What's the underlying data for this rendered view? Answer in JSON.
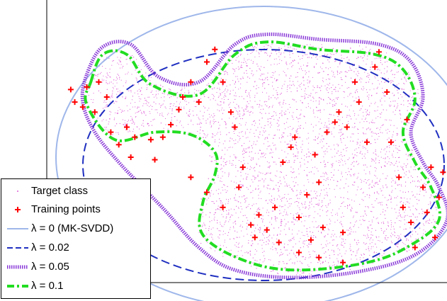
{
  "chart_data": {
    "type": "scatter",
    "title": "",
    "xlabel": "",
    "ylabel": "",
    "grid": false,
    "legend_placement": "bottom-left",
    "series": [
      {
        "name": "Target class",
        "kind": "points",
        "color": "#e060d8",
        "marker": "dot"
      },
      {
        "name": "Training points",
        "kind": "points",
        "color": "#ff0000",
        "marker": "plus",
        "points": [
          [
            0.06,
            0.77
          ],
          [
            0.07,
            0.72
          ],
          [
            0.09,
            0.7
          ],
          [
            0.1,
            0.78
          ],
          [
            0.12,
            0.68
          ],
          [
            0.13,
            0.8
          ],
          [
            0.15,
            0.74
          ],
          [
            0.16,
            0.6
          ],
          [
            0.18,
            0.55
          ],
          [
            0.2,
            0.62
          ],
          [
            0.21,
            0.5
          ],
          [
            0.22,
            0.58
          ],
          [
            0.26,
            0.57
          ],
          [
            0.27,
            0.49
          ],
          [
            0.29,
            0.58
          ],
          [
            0.31,
            0.63
          ],
          [
            0.33,
            0.69
          ],
          [
            0.34,
            0.74
          ],
          [
            0.36,
            0.8
          ],
          [
            0.38,
            0.72
          ],
          [
            0.4,
            0.88
          ],
          [
            0.42,
            0.93
          ],
          [
            0.44,
            0.8
          ],
          [
            0.46,
            0.68
          ],
          [
            0.47,
            0.62
          ],
          [
            0.48,
            0.38
          ],
          [
            0.49,
            0.46
          ],
          [
            0.51,
            0.23
          ],
          [
            0.53,
            0.27
          ],
          [
            0.55,
            0.21
          ],
          [
            0.57,
            0.3
          ],
          [
            0.59,
            0.48
          ],
          [
            0.61,
            0.54
          ],
          [
            0.62,
            0.58
          ],
          [
            0.63,
            0.26
          ],
          [
            0.65,
            0.35
          ],
          [
            0.66,
            0.17
          ],
          [
            0.67,
            0.51
          ],
          [
            0.68,
            0.4
          ],
          [
            0.69,
            0.22
          ],
          [
            0.7,
            0.6
          ],
          [
            0.72,
            0.64
          ],
          [
            0.73,
            0.68
          ],
          [
            0.74,
            0.2
          ],
          [
            0.75,
            0.62
          ],
          [
            0.77,
            0.8
          ],
          [
            0.78,
            0.72
          ],
          [
            0.8,
            0.56
          ],
          [
            0.82,
            0.86
          ],
          [
            0.83,
            0.92
          ],
          [
            0.85,
            0.76
          ],
          [
            0.86,
            0.56
          ],
          [
            0.88,
            0.42
          ],
          [
            0.89,
            0.3
          ],
          [
            0.9,
            0.65
          ],
          [
            0.91,
            0.24
          ],
          [
            0.92,
            0.14
          ],
          [
            0.94,
            0.38
          ],
          [
            0.95,
            0.28
          ],
          [
            0.96,
            0.46
          ],
          [
            0.97,
            0.18
          ],
          [
            0.98,
            0.34
          ],
          [
            0.99,
            0.44
          ],
          [
            0.63,
            0.12
          ],
          [
            0.68,
            0.1
          ],
          [
            0.74,
            0.08
          ],
          [
            0.58,
            0.16
          ],
          [
            0.52,
            0.18
          ],
          [
            0.44,
            0.3
          ],
          [
            0.4,
            0.36
          ],
          [
            0.36,
            0.42
          ]
        ]
      },
      {
        "name": "λ = 0 (MK-SVDD)",
        "kind": "boundary",
        "color": "#9fb7ea",
        "dash": "solid"
      },
      {
        "name": "λ = 0.02",
        "kind": "boundary",
        "color": "#1f2fc0",
        "dash": "dashed"
      },
      {
        "name": "λ = 0.05",
        "kind": "boundary",
        "color": "#8a3ad8",
        "dash": "dotted"
      },
      {
        "name": "λ = 0.1",
        "kind": "boundary",
        "color": "#22dd22",
        "dash": "dash-dot"
      }
    ]
  }
}
